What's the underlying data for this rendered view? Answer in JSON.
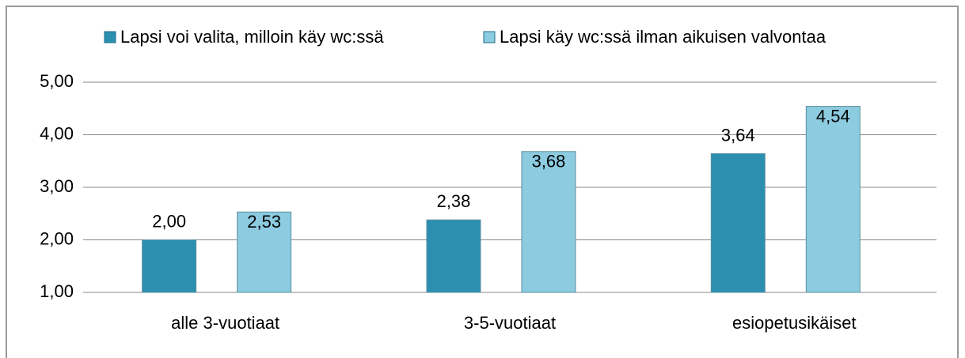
{
  "chart_data": {
    "type": "bar",
    "categories": [
      "alle 3-vuotiaat",
      "3-5-vuotiaat",
      "esiopetusikäiset"
    ],
    "series": [
      {
        "name": "Lapsi voi valita, milloin käy wc:ssä",
        "color": "#2b8fb0",
        "values": [
          2.0,
          2.38,
          3.64
        ],
        "value_labels": [
          "2,00",
          "2,38",
          "3,64"
        ]
      },
      {
        "name": "Lapsi käy wc:ssä ilman aikuisen valvontaa",
        "color": "#8ccbe0",
        "values": [
          2.53,
          3.68,
          4.54
        ],
        "value_labels": [
          "2,53",
          "3,68",
          "4,54"
        ]
      }
    ],
    "ylim": [
      1,
      5
    ],
    "yticks": [
      {
        "value": 1,
        "label": "1,00"
      },
      {
        "value": 2,
        "label": "2,00"
      },
      {
        "value": 3,
        "label": "3,00"
      },
      {
        "value": 4,
        "label": "4,00"
      },
      {
        "value": 5,
        "label": "5,00"
      }
    ],
    "grid": true,
    "legend": "top"
  }
}
